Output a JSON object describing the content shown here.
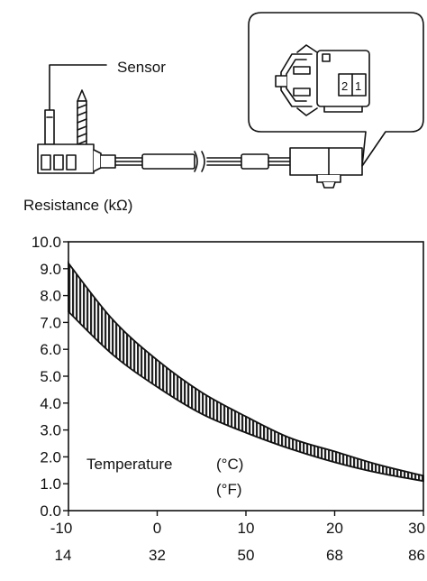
{
  "diagram": {
    "sensor_label": "Sensor",
    "connector_pins": [
      "2",
      "1"
    ]
  },
  "chart_data": {
    "type": "area",
    "title": "",
    "ylabel": "Resistance (kΩ)",
    "xlabel": "Temperature",
    "x_units": [
      "(°C)",
      "(°F)"
    ],
    "x_ticks_c": [
      "-10",
      "0",
      "10",
      "20",
      "30"
    ],
    "x_ticks_f": [
      "14",
      "32",
      "50",
      "68",
      "86"
    ],
    "y_ticks": [
      "10.0",
      "9.0",
      "8.0",
      "7.0",
      "6.0",
      "5.0",
      "4.0",
      "3.0",
      "2.0",
      "1.0",
      "0.0"
    ],
    "xlim": [
      -10,
      30
    ],
    "ylim": [
      0,
      10
    ],
    "grid": false,
    "series": [
      {
        "name": "",
        "x": [
          -10,
          -5,
          0,
          5,
          10,
          15,
          20,
          25,
          30
        ],
        "values": [
          9.2,
          7.1,
          5.6,
          4.4,
          3.5,
          2.7,
          2.2,
          1.7,
          1.3
        ]
      },
      {
        "name": "",
        "x": [
          -10,
          -5,
          0,
          5,
          10,
          15,
          20,
          25,
          30
        ],
        "values": [
          7.4,
          5.8,
          4.6,
          3.6,
          2.9,
          2.3,
          1.8,
          1.4,
          1.1
        ]
      }
    ]
  }
}
